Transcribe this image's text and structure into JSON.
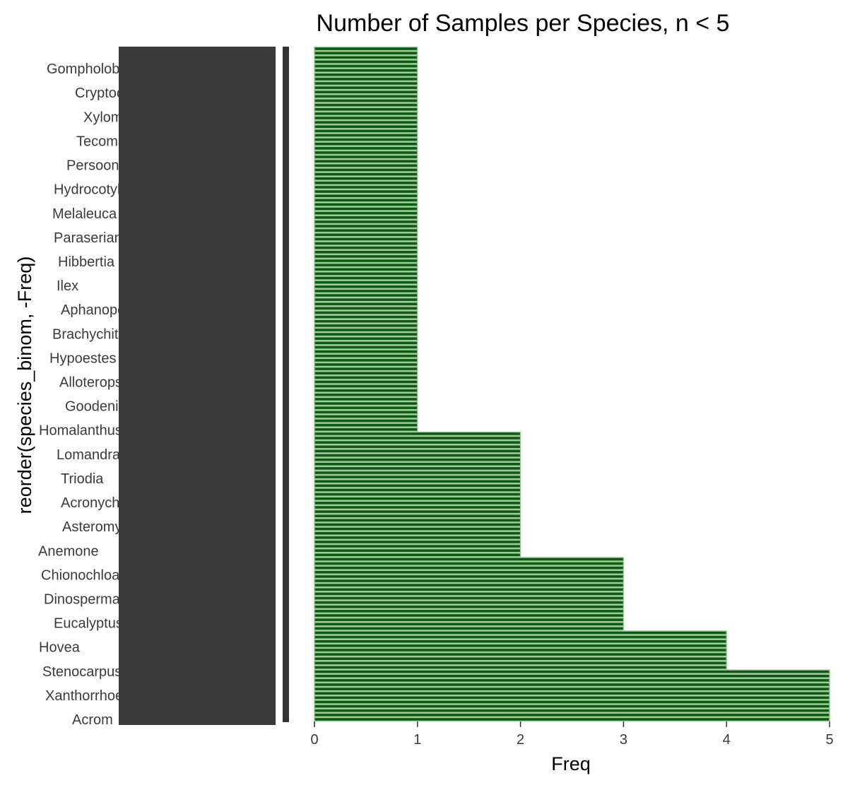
{
  "chart_data": {
    "type": "bar",
    "orientation": "horizontal",
    "title": "Number of Samples per Species, n < 5",
    "xlabel": "Freq",
    "ylabel": "reorder(species_binom, -Freq)",
    "xlim": [
      0,
      5
    ],
    "x_ticks": [
      "0",
      "1",
      "2",
      "3",
      "4",
      "5"
    ],
    "grid": false,
    "legend": "none",
    "y_tick_labels_visible": [
      "Acrom",
      "Xanthorrhoea",
      "Stenocarpus",
      "Hovea",
      "Eucalyptus",
      "Dinosperma",
      "Chionochloa",
      "Anemone",
      "Asteromyrtus",
      "Acronychia",
      "Triodia",
      "Lomandra",
      "Homalanthus",
      "Goodenia",
      "Alloteropsis",
      "Hypoestes",
      "Brachychiton",
      "Aphanopetalum",
      "Ilex",
      "Hibbertia",
      "Paraserianthes",
      "Melaleuca",
      "Hydrocotyle",
      "Persoonia",
      "Tecomanthe",
      "Xylomelum",
      "Cryptocarya",
      "Gompholobium"
    ],
    "series": [
      {
        "fill_color": "#0e5a0e",
        "border_color": "#9ec89e",
        "groups": [
          {
            "freq": 5,
            "count": 12
          },
          {
            "freq": 4,
            "count": 9
          },
          {
            "freq": 3,
            "count": 17
          },
          {
            "freq": 2,
            "count": 29
          },
          {
            "freq": 1,
            "count": 89
          }
        ]
      }
    ],
    "colors": {
      "axis_line": "#333333",
      "text": "#3a3a3a",
      "tick_label_blob": "#3a3a3a"
    }
  }
}
